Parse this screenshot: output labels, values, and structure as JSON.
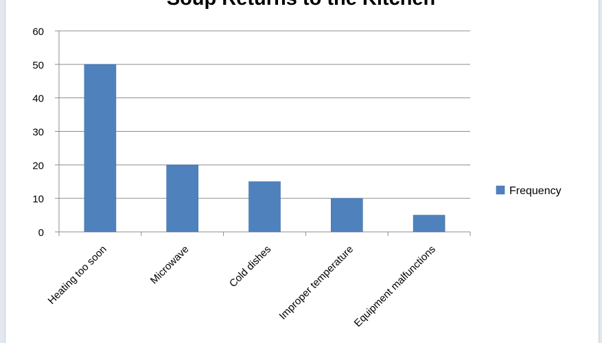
{
  "chart_data": {
    "type": "bar",
    "title": "Soup Returns to the Kitchen",
    "categories": [
      "Heating too soon",
      "Microwave",
      "Cold dishes",
      "Improper temperature",
      "Equipment malfunctions"
    ],
    "series": [
      {
        "name": "Frequency",
        "values": [
          50,
          20,
          15,
          10,
          5
        ],
        "color": "#4f81bd"
      }
    ],
    "ylim": [
      0,
      60
    ],
    "yticks": [
      0,
      10,
      20,
      30,
      40,
      50,
      60
    ],
    "grid": true,
    "legend": "right"
  }
}
